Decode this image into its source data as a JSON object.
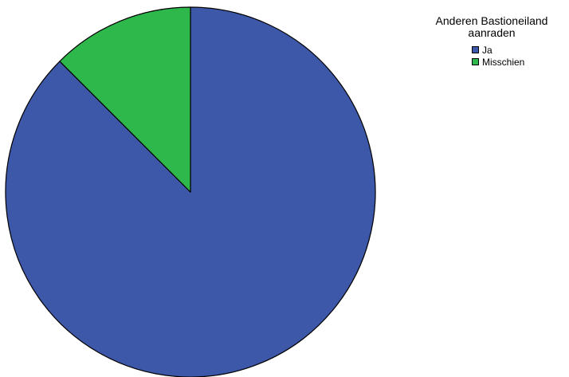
{
  "chart_data": {
    "type": "pie",
    "legend_title_lines": [
      "Anderen Bastioneiland",
      "aanraden"
    ],
    "legend_placement": "top-right",
    "start_angle": "12 o'clock",
    "direction": "clockwise",
    "series": [
      {
        "name": "Ja",
        "value": 87.5,
        "color": "#3e58a9"
      },
      {
        "name": "Misschien",
        "value": 12.5,
        "color": "#2eb84b"
      }
    ]
  }
}
